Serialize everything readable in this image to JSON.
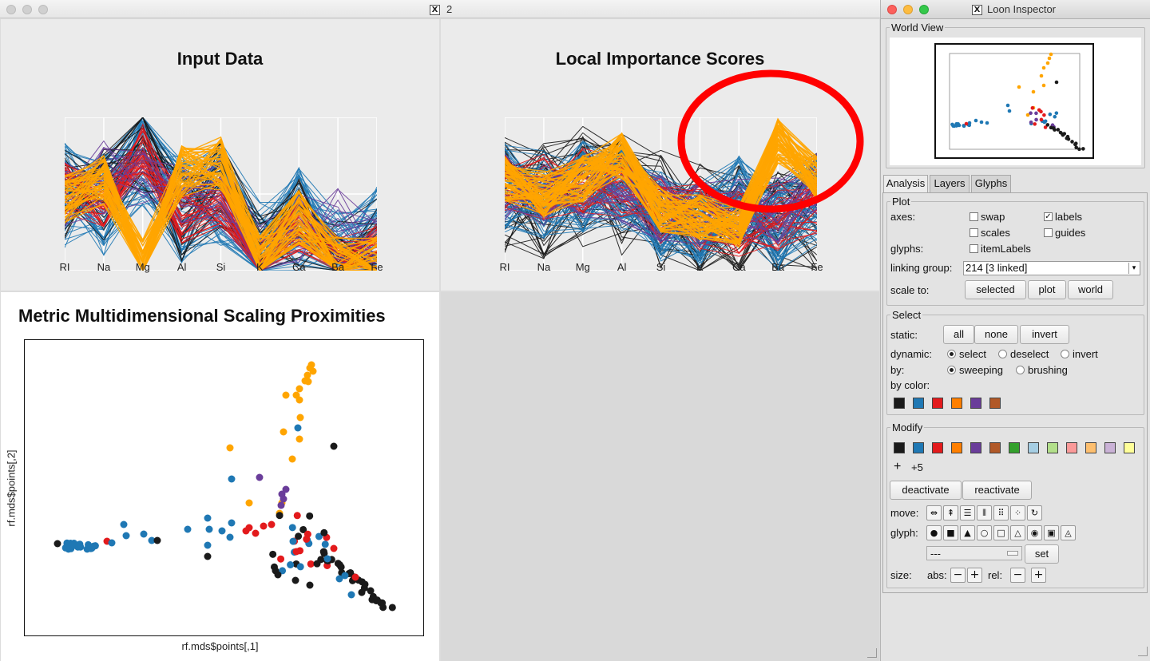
{
  "main_window": {
    "title": "2",
    "x_icon": "X"
  },
  "pc_plots": [
    {
      "title": "Input Data",
      "axes": [
        "RI",
        "Na",
        "Mg",
        "Al",
        "Si",
        "K",
        "Ca",
        "Ba",
        "Fe"
      ]
    },
    {
      "title": "Local Importance Scores",
      "axes": [
        "RI",
        "Na",
        "Mg",
        "Al",
        "Si",
        "K",
        "Ca",
        "Ba",
        "Fe"
      ]
    }
  ],
  "mds_plot": {
    "title": "Metric Multidimensional Scaling Proximities",
    "xlabel": "rf.mds$points[,1]",
    "ylabel": "rf.mds$points[,2]"
  },
  "colors": {
    "black": "#1a1a1a",
    "blue": "#1f78b4",
    "red": "#e31a1c",
    "orange": "#ff7f00",
    "gold": "#ffa500",
    "purple": "#6a3d9a",
    "brown": "#b15928",
    "annotation_red": "#ff0000"
  },
  "inspector": {
    "title": "Loon Inspector",
    "x_icon": "X",
    "world_view_label": "World View",
    "tabs": [
      "Analysis",
      "Layers",
      "Glyphs"
    ],
    "plot": {
      "label": "Plot",
      "axes_label": "axes:",
      "swap": "swap",
      "labels": "labels",
      "scales": "scales",
      "guides": "guides",
      "glyphs_label": "glyphs:",
      "item_labels": "itemLabels",
      "linking_group_label": "linking group:",
      "linking_group_value": "214  [3 linked]",
      "scale_to_label": "scale to:",
      "scale_buttons": [
        "selected",
        "plot",
        "world"
      ]
    },
    "select": {
      "label": "Select",
      "static_label": "static:",
      "static_buttons": [
        "all",
        "none",
        "invert"
      ],
      "dynamic_label": "dynamic:",
      "dynamic_options": [
        "select",
        "deselect",
        "invert"
      ],
      "by_label": "by:",
      "by_options": [
        "sweeping",
        "brushing"
      ],
      "by_color_label": "by color:",
      "by_color_swatches": [
        "#1a1a1a",
        "#1f78b4",
        "#e31a1c",
        "#ff7f00",
        "#6a3d9a",
        "#b15928"
      ]
    },
    "modify": {
      "label": "Modify",
      "swatches": [
        "#1a1a1a",
        "#1f78b4",
        "#e31a1c",
        "#ff7f00",
        "#6a3d9a",
        "#b15928",
        "#33a02c",
        "#a6cee3",
        "#b2df8a",
        "#fb9a99",
        "#fdbf6f",
        "#cab2d6",
        "#ffff99"
      ],
      "plus_label": "+",
      "more_count": "+5",
      "deactivate": "deactivate",
      "reactivate": "reactivate",
      "move_label": "move:",
      "glyph_label": "glyph:",
      "glyph_select_value": "---",
      "set_button": "set",
      "size_label": "size:",
      "abs_label": "abs:",
      "rel_label": "rel:",
      "minus": "−",
      "plus": "+"
    }
  }
}
